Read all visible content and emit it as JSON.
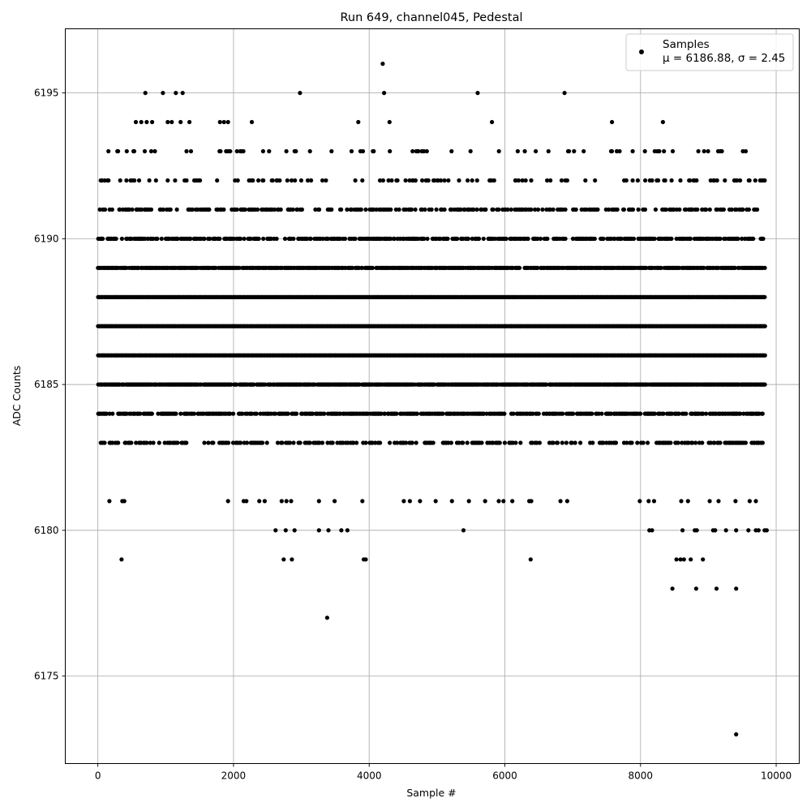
{
  "chart_data": {
    "type": "scatter",
    "title": "Run 649, channel045, Pedestal",
    "xlabel": "Sample #",
    "ylabel": "ADC Counts",
    "xlim": [
      -480,
      10340
    ],
    "ylim": [
      6172,
      6197.2
    ],
    "xticks": [
      0,
      2000,
      4000,
      6000,
      8000,
      10000
    ],
    "yticks": [
      6175,
      6180,
      6185,
      6190,
      6195
    ],
    "grid": true,
    "legend_position": "top-right",
    "marker_color": "#000000",
    "x_max_sample": 9840,
    "series": [
      {
        "name": "Samples",
        "stats_label": "μ = 6186.88, σ = 2.45",
        "mean": 6186.88,
        "sigma": 2.45,
        "dense_levels": [
          6183,
          6184,
          6185,
          6186,
          6187,
          6188,
          6189,
          6190,
          6191,
          6192,
          6193
        ],
        "outliers": [
          [
            4200,
            6196
          ],
          [
            700,
            6195
          ],
          [
            960,
            6195
          ],
          [
            1150,
            6195
          ],
          [
            1250,
            6195
          ],
          [
            2980,
            6195
          ],
          [
            4220,
            6195
          ],
          [
            5600,
            6195
          ],
          [
            6880,
            6195
          ],
          [
            560,
            6194
          ],
          [
            640,
            6194
          ],
          [
            720,
            6194
          ],
          [
            800,
            6194
          ],
          [
            1030,
            6194
          ],
          [
            1090,
            6194
          ],
          [
            1220,
            6194
          ],
          [
            1350,
            6194
          ],
          [
            1800,
            6194
          ],
          [
            1860,
            6194
          ],
          [
            1920,
            6194
          ],
          [
            2270,
            6194
          ],
          [
            3840,
            6194
          ],
          [
            4300,
            6194
          ],
          [
            5810,
            6194
          ],
          [
            7580,
            6194
          ],
          [
            8330,
            6194
          ],
          [
            170,
            6181
          ],
          [
            360,
            6181
          ],
          [
            390,
            6181
          ],
          [
            1920,
            6181
          ],
          [
            2150,
            6181
          ],
          [
            2190,
            6181
          ],
          [
            2380,
            6181
          ],
          [
            2460,
            6181
          ],
          [
            2710,
            6181
          ],
          [
            2780,
            6181
          ],
          [
            2850,
            6181
          ],
          [
            3260,
            6181
          ],
          [
            3490,
            6181
          ],
          [
            3900,
            6181
          ],
          [
            4510,
            6181
          ],
          [
            4600,
            6181
          ],
          [
            4750,
            6181
          ],
          [
            4980,
            6181
          ],
          [
            5220,
            6181
          ],
          [
            5470,
            6181
          ],
          [
            5710,
            6181
          ],
          [
            5910,
            6181
          ],
          [
            5980,
            6181
          ],
          [
            6110,
            6181
          ],
          [
            6360,
            6181
          ],
          [
            6390,
            6181
          ],
          [
            6820,
            6181
          ],
          [
            6920,
            6181
          ],
          [
            7990,
            6181
          ],
          [
            8120,
            6181
          ],
          [
            8200,
            6181
          ],
          [
            8600,
            6181
          ],
          [
            8700,
            6181
          ],
          [
            9020,
            6181
          ],
          [
            9150,
            6181
          ],
          [
            9400,
            6181
          ],
          [
            9610,
            6181
          ],
          [
            9700,
            6181
          ],
          [
            2620,
            6180
          ],
          [
            2770,
            6180
          ],
          [
            2900,
            6180
          ],
          [
            3260,
            6180
          ],
          [
            3400,
            6180
          ],
          [
            3590,
            6180
          ],
          [
            3680,
            6180
          ],
          [
            5390,
            6180
          ],
          [
            8130,
            6180
          ],
          [
            8170,
            6180
          ],
          [
            8620,
            6180
          ],
          [
            8800,
            6180
          ],
          [
            8830,
            6180
          ],
          [
            9070,
            6180
          ],
          [
            9100,
            6180
          ],
          [
            9260,
            6180
          ],
          [
            9410,
            6180
          ],
          [
            9590,
            6180
          ],
          [
            9700,
            6180
          ],
          [
            9740,
            6180
          ],
          [
            9830,
            6180
          ],
          [
            9860,
            6180
          ],
          [
            350,
            6179
          ],
          [
            2740,
            6179
          ],
          [
            2860,
            6179
          ],
          [
            3920,
            6179
          ],
          [
            3950,
            6179
          ],
          [
            6380,
            6179
          ],
          [
            8530,
            6179
          ],
          [
            8590,
            6179
          ],
          [
            8640,
            6179
          ],
          [
            8740,
            6179
          ],
          [
            8920,
            6179
          ],
          [
            8470,
            6178
          ],
          [
            8820,
            6178
          ],
          [
            9120,
            6178
          ],
          [
            9410,
            6178
          ],
          [
            3380,
            6177
          ],
          [
            9410,
            6173
          ]
        ]
      }
    ]
  }
}
